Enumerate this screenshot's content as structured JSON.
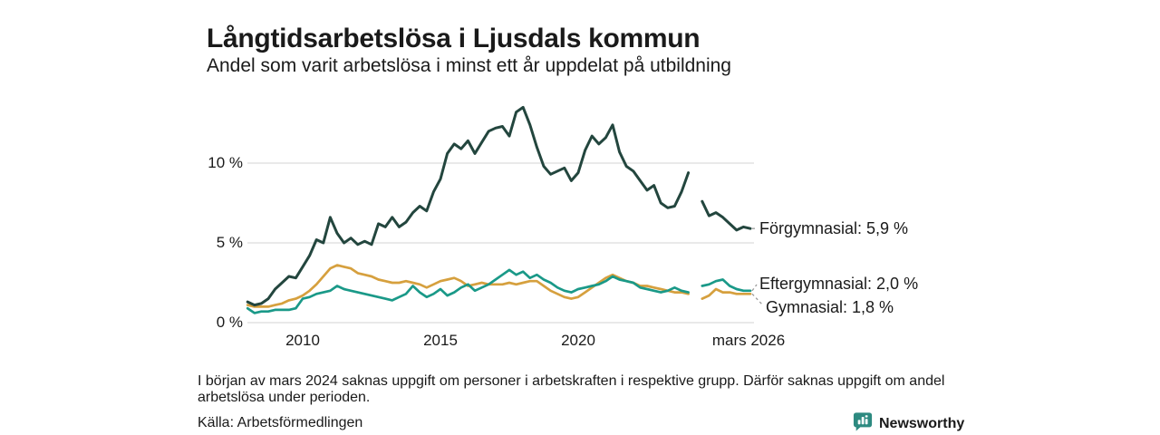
{
  "header": {
    "title": "Långtidsarbetslösa i Ljusdals kommun",
    "subtitle": "Andel som varit arbetslösa i minst ett år uppdelat på utbildning"
  },
  "chart_data": {
    "type": "line",
    "title": "Långtidsarbetslösa i Ljusdals kommun",
    "xlabel": "",
    "ylabel": "",
    "x_domain": [
      2008,
      2026.25
    ],
    "ylim": [
      0,
      14
    ],
    "grid": "horizontal",
    "legend_position": "end-of-line labels, right side",
    "yticks": [
      {
        "value": 0,
        "label": "0 %"
      },
      {
        "value": 5,
        "label": "5 %"
      },
      {
        "value": 10,
        "label": "10 %"
      }
    ],
    "xticks": [
      {
        "value": 2010,
        "label": "2010"
      },
      {
        "value": 2015,
        "label": "2015"
      },
      {
        "value": 2020,
        "label": "2020"
      },
      {
        "value": 2026.17,
        "label": "mars 2026"
      }
    ],
    "gap_note": "values are null in early 2024 where data is missing",
    "x": [
      2008,
      2008.25,
      2008.5,
      2008.75,
      2009,
      2009.25,
      2009.5,
      2009.75,
      2010,
      2010.25,
      2010.5,
      2010.75,
      2011,
      2011.25,
      2011.5,
      2011.75,
      2012,
      2012.25,
      2012.5,
      2012.75,
      2013,
      2013.25,
      2013.5,
      2013.75,
      2014,
      2014.25,
      2014.5,
      2014.75,
      2015,
      2015.25,
      2015.5,
      2015.75,
      2016,
      2016.25,
      2016.5,
      2016.75,
      2017,
      2017.25,
      2017.5,
      2017.75,
      2018,
      2018.25,
      2018.5,
      2018.75,
      2019,
      2019.25,
      2019.5,
      2019.75,
      2020,
      2020.25,
      2020.5,
      2020.75,
      2021,
      2021.25,
      2021.5,
      2021.75,
      2022,
      2022.25,
      2022.5,
      2022.75,
      2023,
      2023.25,
      2023.5,
      2023.75,
      2024,
      2024.25,
      2024.5,
      2024.75,
      2025,
      2025.25,
      2025.5,
      2025.75,
      2026,
      2026.25
    ],
    "series": [
      {
        "name": "Förgymnasial",
        "end_label": "Förgymnasial: 5,9 %",
        "end_value": "5,9 %",
        "color": "#23463e",
        "values": [
          1.3,
          1.1,
          1.2,
          1.5,
          2.1,
          2.5,
          2.9,
          2.8,
          3.5,
          4.2,
          5.2,
          5.0,
          6.6,
          5.6,
          5.0,
          5.3,
          4.9,
          5.1,
          4.9,
          6.2,
          6.0,
          6.6,
          6.0,
          6.3,
          6.9,
          7.3,
          7.0,
          8.2,
          9.0,
          10.6,
          11.2,
          10.9,
          11.4,
          10.6,
          11.3,
          12.0,
          12.2,
          12.3,
          11.7,
          13.2,
          13.5,
          12.4,
          11.0,
          9.8,
          9.3,
          9.5,
          9.7,
          8.9,
          9.4,
          10.8,
          11.7,
          11.2,
          11.6,
          12.4,
          10.7,
          9.8,
          9.5,
          8.9,
          8.3,
          8.6,
          7.5,
          7.2,
          7.3,
          8.2,
          9.4,
          null,
          7.6,
          6.7,
          6.9,
          6.6,
          6.2,
          5.8,
          6.0,
          5.9
        ]
      },
      {
        "name": "Eftergymnasial",
        "end_label": "Eftergymnasial: 2,0 %",
        "end_value": "2,0 %",
        "color": "#1a9988",
        "values": [
          0.9,
          0.6,
          0.7,
          0.7,
          0.8,
          0.8,
          0.8,
          0.9,
          1.5,
          1.6,
          1.8,
          1.9,
          2.0,
          2.3,
          2.1,
          2.0,
          1.9,
          1.8,
          1.7,
          1.6,
          1.5,
          1.4,
          1.6,
          1.8,
          2.3,
          1.9,
          1.6,
          1.8,
          2.1,
          1.7,
          1.9,
          2.2,
          2.4,
          2.0,
          2.2,
          2.4,
          2.7,
          3.0,
          3.3,
          3.0,
          3.2,
          2.8,
          3.0,
          2.7,
          2.5,
          2.2,
          2.0,
          1.9,
          2.1,
          2.2,
          2.3,
          2.4,
          2.6,
          2.9,
          2.7,
          2.6,
          2.5,
          2.2,
          2.1,
          2.0,
          1.9,
          2.0,
          2.2,
          2.0,
          1.9,
          null,
          2.3,
          2.4,
          2.6,
          2.7,
          2.3,
          2.1,
          2.0,
          2.0
        ]
      },
      {
        "name": "Gymnasial",
        "end_label": "Gymnasial: 1,8 %",
        "end_value": "1,8 %",
        "color": "#d6a03e",
        "values": [
          1.1,
          1.0,
          1.0,
          1.0,
          1.1,
          1.2,
          1.4,
          1.5,
          1.7,
          2.0,
          2.4,
          2.9,
          3.4,
          3.6,
          3.5,
          3.4,
          3.1,
          3.0,
          2.9,
          2.7,
          2.6,
          2.5,
          2.5,
          2.6,
          2.5,
          2.4,
          2.2,
          2.4,
          2.6,
          2.7,
          2.8,
          2.6,
          2.3,
          2.4,
          2.5,
          2.4,
          2.4,
          2.4,
          2.5,
          2.4,
          2.5,
          2.6,
          2.6,
          2.3,
          2.0,
          1.8,
          1.6,
          1.5,
          1.6,
          1.9,
          2.2,
          2.5,
          2.8,
          3.0,
          2.8,
          2.6,
          2.5,
          2.3,
          2.3,
          2.2,
          2.1,
          2.0,
          1.9,
          1.9,
          1.8,
          null,
          1.5,
          1.7,
          2.1,
          1.9,
          1.9,
          1.8,
          1.8,
          1.8
        ]
      }
    ],
    "colors": {
      "grid": "#e2e2e2",
      "leader_line": "#999999",
      "text": "#1a1a1a"
    }
  },
  "footer": {
    "note": "I början av mars 2024 saknas uppgift om personer i arbetskraften i respektive grupp. Därför saknas uppgift om andel arbetslösa under perioden.",
    "source": "Källa: Arbetsförmedlingen",
    "brand": "Newsworthy",
    "brand_color": "#2d8a80"
  }
}
